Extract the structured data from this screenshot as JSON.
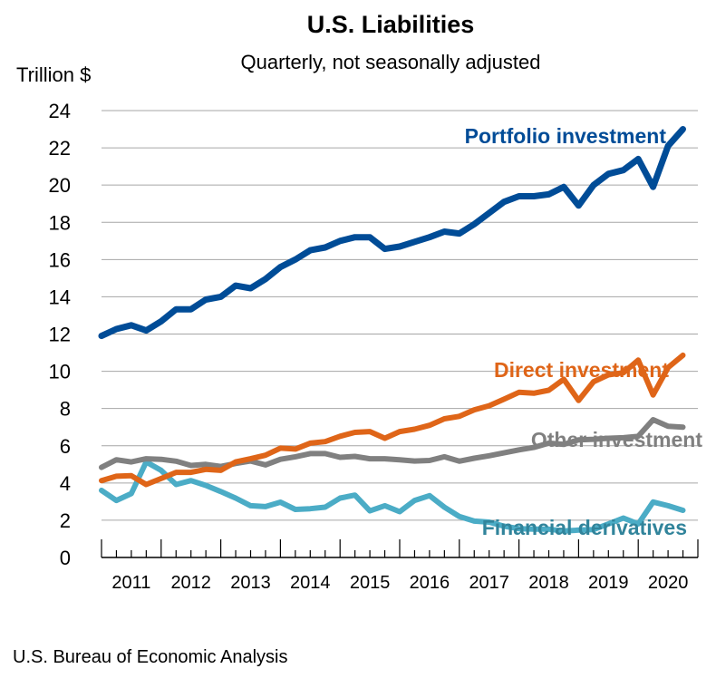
{
  "chart_data": {
    "type": "line",
    "title": "U.S. Liabilities",
    "subtitle": "Quarterly, not seasonally adjusted",
    "ylabel": "Trillion $",
    "xlabel": "",
    "ylim": [
      0,
      24
    ],
    "yticks": [
      "0",
      "2",
      "4",
      "6",
      "8",
      "10",
      "12",
      "14",
      "16",
      "18",
      "20",
      "22",
      "24"
    ],
    "xtick_labels": [
      "2011",
      "2012",
      "2013",
      "2014",
      "2015",
      "2016",
      "2017",
      "2018",
      "2019",
      "2020"
    ],
    "x_frequency": "quarterly, 2011 Q1 – 2020 Q4",
    "grid": true,
    "legend": "inline labels",
    "source": "U.S. Bureau of Economic Analysis",
    "series": [
      {
        "name": "Portfolio investment",
        "color": "#004C97",
        "label_color": "#004C97",
        "values": [
          11.9,
          12.27,
          12.47,
          12.19,
          12.68,
          13.33,
          13.33,
          13.85,
          14.0,
          14.6,
          14.46,
          14.95,
          15.6,
          16.0,
          16.5,
          16.65,
          17.0,
          17.2,
          17.2,
          16.57,
          16.7,
          16.95,
          17.2,
          17.5,
          17.4,
          17.9,
          18.5,
          19.1,
          19.4,
          19.4,
          19.5,
          19.9,
          18.9,
          20.0,
          20.6,
          20.8,
          21.4,
          19.9,
          22.1,
          23.0
        ]
      },
      {
        "name": "Direct investment",
        "color": "#DF6518",
        "label_color": "#DF6518",
        "values": [
          4.13,
          4.36,
          4.39,
          3.92,
          4.24,
          4.57,
          4.57,
          4.73,
          4.68,
          5.13,
          5.3,
          5.49,
          5.87,
          5.82,
          6.14,
          6.22,
          6.51,
          6.72,
          6.76,
          6.4,
          6.76,
          6.89,
          7.1,
          7.45,
          7.58,
          7.93,
          8.15,
          8.5,
          8.87,
          8.82,
          8.98,
          9.57,
          8.43,
          9.44,
          9.81,
          9.92,
          10.6,
          8.73,
          10.2,
          10.86
        ]
      },
      {
        "name": "Other investment",
        "color": "#808080",
        "label_color": "#808080",
        "values": [
          4.84,
          5.25,
          5.13,
          5.3,
          5.27,
          5.17,
          4.94,
          5.0,
          4.89,
          5.05,
          5.18,
          4.97,
          5.27,
          5.41,
          5.58,
          5.58,
          5.38,
          5.43,
          5.3,
          5.3,
          5.25,
          5.18,
          5.21,
          5.41,
          5.17,
          5.33,
          5.46,
          5.62,
          5.78,
          5.91,
          6.14,
          6.07,
          6.32,
          6.35,
          6.4,
          6.43,
          6.51,
          7.4,
          7.05,
          7.0
        ]
      },
      {
        "name": "Financial derivatives",
        "color": "#4BACC6",
        "label_color": "#31849B",
        "values": [
          3.6,
          3.06,
          3.43,
          5.13,
          4.68,
          3.92,
          4.13,
          3.87,
          3.54,
          3.19,
          2.78,
          2.73,
          2.97,
          2.58,
          2.62,
          2.7,
          3.19,
          3.35,
          2.5,
          2.78,
          2.46,
          3.06,
          3.32,
          2.7,
          2.2,
          1.95,
          1.9,
          1.68,
          1.55,
          1.52,
          1.52,
          1.42,
          1.47,
          1.5,
          1.8,
          2.12,
          1.8,
          2.98,
          2.78,
          2.53
        ]
      }
    ]
  }
}
